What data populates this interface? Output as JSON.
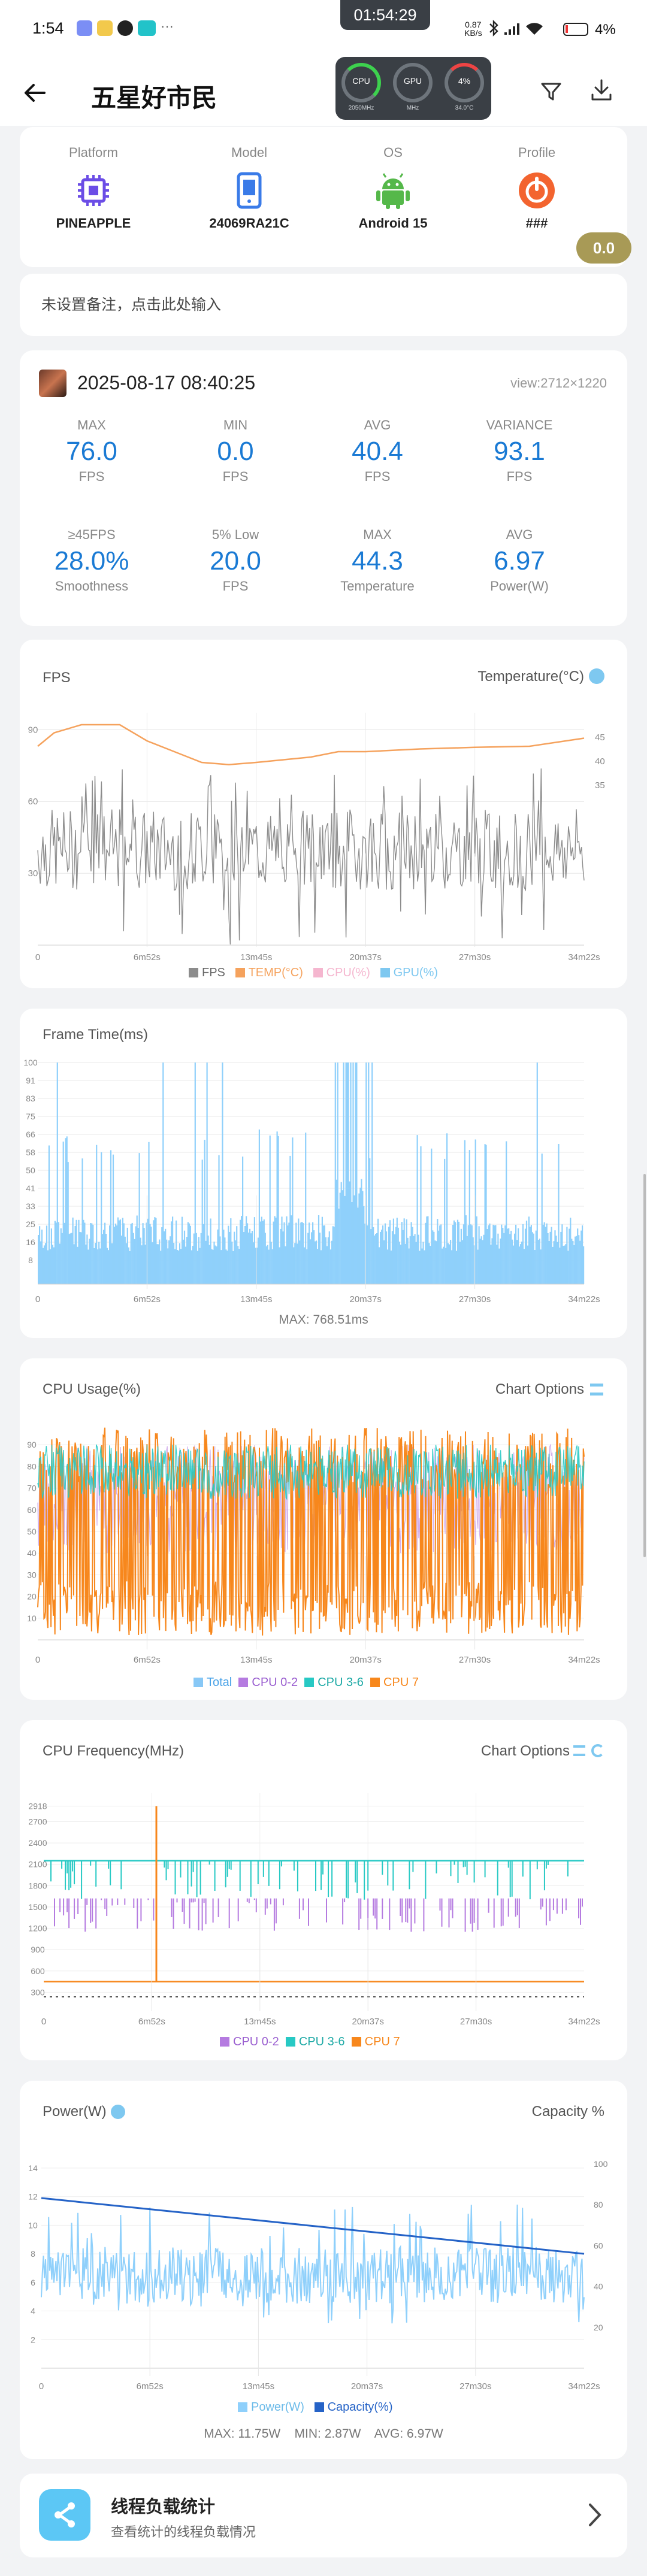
{
  "status_bar": {
    "time": "1:54",
    "clock_overlay": "01:54:29",
    "net_speed_value": "0.87",
    "net_speed_unit": "KB/s",
    "battery": "4%"
  },
  "hub": {
    "cpu_label": "CPU",
    "cpu_sub": "2050MHz",
    "gpu_label": "GPU",
    "gpu_sub": "MHz",
    "temp_label": "4%",
    "temp_sub": "34.0°C"
  },
  "header": {
    "title": "五星好市民"
  },
  "device": [
    {
      "label": "Platform",
      "value": "PINEAPPLE",
      "icon": "chip-icon"
    },
    {
      "label": "Model",
      "value": "24069RA21C",
      "icon": "phone-icon"
    },
    {
      "label": "OS",
      "value": "Android 15",
      "icon": "android-icon"
    },
    {
      "label": "Profile",
      "value": "###",
      "icon": "profile-icon"
    }
  ],
  "score_badge": "0.0",
  "note_placeholder": "未设置备注，点击此处输入",
  "session": {
    "datetime": "2025-08-17 08:40:25",
    "view": "view:2712×1220",
    "stats_row1": [
      {
        "title": "MAX",
        "value": "76.0",
        "unit": "FPS"
      },
      {
        "title": "MIN",
        "value": "0.0",
        "unit": "FPS"
      },
      {
        "title": "AVG",
        "value": "40.4",
        "unit": "FPS"
      },
      {
        "title": "VARIANCE",
        "value": "93.1",
        "unit": "FPS"
      }
    ],
    "stats_row2": [
      {
        "title": "≥45FPS",
        "value": "28.0%",
        "unit": "Smoothness"
      },
      {
        "title": "5% Low",
        "value": "20.0",
        "unit": "FPS"
      },
      {
        "title": "MAX",
        "value": "44.3",
        "unit": "Temperature"
      },
      {
        "title": "AVG",
        "value": "6.97",
        "unit": "Power(W)"
      }
    ]
  },
  "time_ticks": [
    "0",
    "6m52s",
    "13m45s",
    "20m37s",
    "27m30s",
    "34m22s"
  ],
  "fps_chart": {
    "title": "FPS",
    "right_label": "Temperature(°C)",
    "yticks_left": [
      "90",
      "60",
      "30"
    ],
    "yticks_right": [
      "45",
      "40",
      "35"
    ],
    "legend": [
      "FPS",
      "TEMP(°C)",
      "CPU(%)",
      "GPU(%)"
    ]
  },
  "frametime_chart": {
    "title": "Frame Time(ms)",
    "yticks": [
      "100",
      "91",
      "83",
      "75",
      "66",
      "58",
      "50",
      "41",
      "33",
      "25",
      "16",
      "8"
    ],
    "summary": "MAX: 768.51ms"
  },
  "cpu_usage_chart": {
    "title": "CPU Usage(%)",
    "options": "Chart Options",
    "yticks": [
      "90",
      "80",
      "70",
      "60",
      "50",
      "40",
      "30",
      "20",
      "10"
    ],
    "legend": [
      "Total",
      "CPU 0-2",
      "CPU 3-6",
      "CPU 7"
    ]
  },
  "cpu_freq_chart": {
    "title": "CPU Frequency(MHz)",
    "options": "Chart Options",
    "yticks": [
      "2918",
      "2700",
      "2400",
      "2100",
      "1800",
      "1500",
      "1200",
      "900",
      "600",
      "300"
    ],
    "legend": [
      "CPU 0-2",
      "CPU 3-6",
      "CPU 7"
    ]
  },
  "power_chart": {
    "title": "Power(W)",
    "right_label": "Capacity %",
    "yticks_left": [
      "14",
      "12",
      "10",
      "8",
      "6",
      "4",
      "2"
    ],
    "yticks_right": [
      "100",
      "80",
      "60",
      "40",
      "20"
    ],
    "legend": [
      "Power(W)",
      "Capacity(%)"
    ],
    "summary": "MAX: 11.75W    MIN: 2.87W    AVG: 6.97W"
  },
  "thread_card": {
    "title": "线程负载统计",
    "subtitle": "查看统计的线程负载情况"
  },
  "colors": {
    "fps": "#8c8c8c",
    "temp": "#f5a25d",
    "cpu": "#f5b6cf",
    "gpu": "#7ec8f0",
    "frametime": "#8fd0fb",
    "total": "#88c8f6",
    "cpu02": "#b57be0",
    "cpu36": "#27c9c4",
    "cpu7": "#f7871c",
    "accent": "#1a7ad4",
    "badge": "#a89a56"
  }
}
